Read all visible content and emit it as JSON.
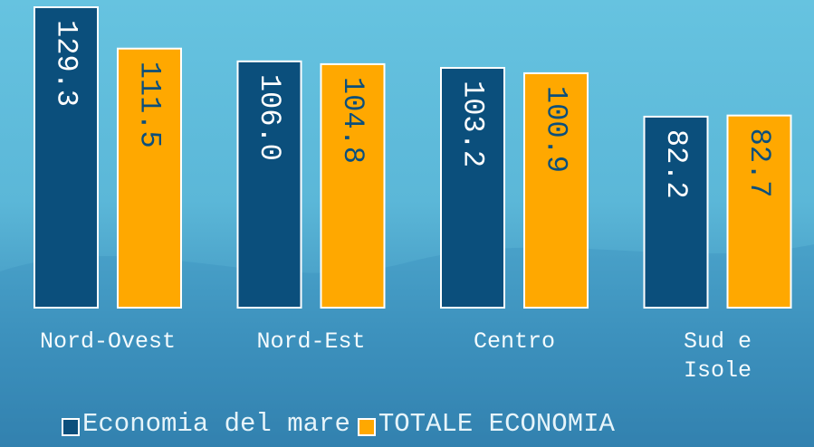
{
  "chart_data": {
    "type": "bar",
    "categories": [
      "Nord-Ovest",
      "Nord-Est",
      "Centro",
      "Sud e Isole"
    ],
    "series": [
      {
        "name": "Economia del mare",
        "color": "#0b4f7c",
        "values": [
          129.3,
          106.0,
          103.2,
          82.2
        ],
        "value_labels": [
          "129.3",
          "106.0",
          "103.2",
          "82.2"
        ]
      },
      {
        "name": "TOTALE ECONOMIA",
        "color": "#ffa800",
        "values": [
          111.5,
          104.8,
          100.9,
          82.7
        ],
        "value_labels": [
          "111.5",
          "104.8",
          "100.9",
          "82.7"
        ]
      }
    ]
  }
}
